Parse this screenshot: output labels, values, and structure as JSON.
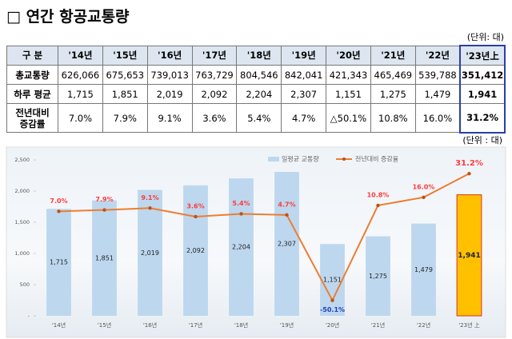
{
  "header": {
    "title": "□ 연간 항공교통량",
    "unit": "(단위: 대)"
  },
  "table": {
    "header": [
      "구  분",
      "'14년",
      "'15년",
      "'16년",
      "'17년",
      "'18년",
      "'19년",
      "'20년",
      "'21년",
      "'22년",
      "'23년上"
    ],
    "rows": [
      [
        "총교통량",
        "626,066",
        "675,653",
        "739,013",
        "763,729",
        "804,546",
        "842,041",
        "421,343",
        "465,469",
        "539,788",
        "351,412"
      ],
      [
        "하루 평균",
        "1,715",
        "1,851",
        "2,019",
        "2,092",
        "2,204",
        "2,307",
        "1,151",
        "1,275",
        "1,479",
        "1,941"
      ],
      [
        "전년대비\n증감률",
        "7.0%",
        "7.9%",
        "9.1%",
        "3.6%",
        "5.4%",
        "4.7%",
        "△50.1%",
        "10.8%",
        "16.0%",
        "31.2%"
      ]
    ]
  },
  "chart_data": {
    "type": "bar-line",
    "unit": "(단위 : 대)",
    "categories": [
      "'14년",
      "'15년",
      "'16년",
      "'17년",
      "'18년",
      "'19년",
      "'20년",
      "'21년",
      "'22년",
      "'23년 上"
    ],
    "series": [
      {
        "name": "일평균 교통량",
        "type": "bar",
        "color": "#bdd7ee",
        "colors": [
          "#bdd7ee",
          "#bdd7ee",
          "#bdd7ee",
          "#bdd7ee",
          "#bdd7ee",
          "#bdd7ee",
          "#bdd7ee",
          "#bdd7ee",
          "#bdd7ee",
          "#ffc000"
        ],
        "values": [
          1715,
          1851,
          2019,
          2092,
          2204,
          2307,
          1151,
          1275,
          1479,
          1941
        ],
        "value_labels": [
          "1,715",
          "1,851",
          "2,019",
          "2,092",
          "2,204",
          "2,307",
          "1,151",
          "1,275",
          "1,479",
          "1,941"
        ]
      },
      {
        "name": "전년대비 증감율",
        "type": "line",
        "axis": "y2",
        "color": "#ed7d31",
        "values": [
          7.0,
          7.9,
          9.1,
          3.6,
          5.4,
          4.7,
          -50.1,
          10.8,
          16.0,
          31.2
        ],
        "value_labels": [
          "7.0%",
          "7.9%",
          "9.1%",
          "3.6%",
          "5.4%",
          "4.7%",
          "-50.1%",
          "10.8%",
          "16.0%",
          "31.2%"
        ]
      }
    ],
    "ylim": [
      0,
      2500
    ],
    "yticks": [
      {
        "value": 0,
        "label": "-"
      },
      500,
      {
        "value": 1000,
        "label": "1,000"
      },
      {
        "value": 1500,
        "label": "1,500"
      },
      {
        "value": 2000,
        "label": "2,000"
      },
      {
        "value": 2500,
        "label": "2,500"
      }
    ],
    "y2lim": [
      -60,
      40
    ]
  }
}
